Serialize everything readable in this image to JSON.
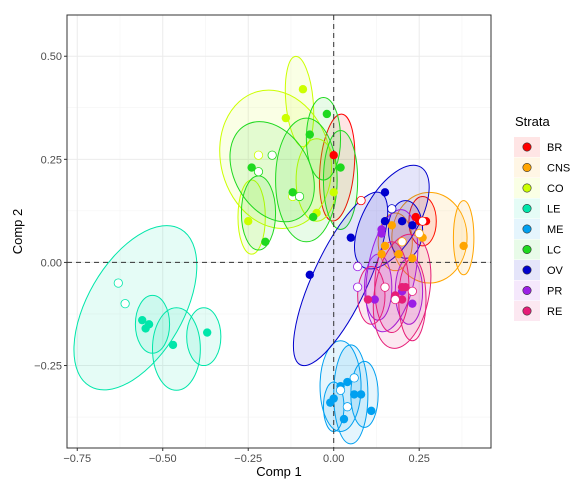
{
  "chart_data": {
    "type": "scatter",
    "xlabel": "Comp 1",
    "ylabel": "Comp 2",
    "xlim": [
      -0.78,
      0.46
    ],
    "ylim": [
      -0.45,
      0.6
    ],
    "x_ticks": [
      -0.75,
      -0.5,
      -0.25,
      0.0,
      0.25
    ],
    "x_tick_labels": [
      "−0.75",
      "−0.50",
      "−0.25",
      "0.00",
      "0.25"
    ],
    "y_ticks": [
      -0.25,
      0.0,
      0.25,
      0.5
    ],
    "y_tick_labels": [
      "−0.25",
      "0.00",
      "0.25",
      "0.50"
    ],
    "grid": true,
    "reference_lines": {
      "x": 0,
      "y": 0,
      "style": "dashed"
    },
    "legend": {
      "title": "Strata",
      "position": "right",
      "entries": [
        "BR",
        "CNS",
        "CO",
        "LE",
        "ME",
        "LC",
        "OV",
        "PR",
        "RE"
      ]
    },
    "series": [
      {
        "name": "BR",
        "color": "#FF0000",
        "points": [
          [
            0.0,
            0.26
          ],
          [
            0.25,
            0.1
          ],
          [
            0.27,
            0.1
          ],
          [
            0.24,
            0.11
          ]
        ],
        "centroids": [
          [
            0.08,
            0.15
          ],
          [
            0.26,
            0.1
          ]
        ],
        "ellipses": [
          [
            0.01,
            0.23,
            0.05,
            0.13,
            5
          ],
          [
            0.26,
            0.1,
            0.04,
            0.06,
            0
          ]
        ]
      },
      {
        "name": "CNS",
        "color": "#FFA500",
        "points": [
          [
            0.38,
            0.04
          ],
          [
            0.14,
            0.02
          ],
          [
            0.15,
            0.04
          ],
          [
            0.19,
            0.02
          ],
          [
            0.23,
            0.01
          ],
          [
            0.26,
            0.06
          ],
          [
            0.17,
            0.09
          ]
        ],
        "centroids": [
          [
            0.25,
            0.07
          ],
          [
            0.2,
            0.05
          ]
        ],
        "ellipses": [
          [
            0.28,
            0.06,
            0.11,
            0.11,
            0
          ],
          [
            0.38,
            0.06,
            0.03,
            0.09,
            0
          ],
          [
            0.18,
            0.05,
            0.05,
            0.07,
            0
          ]
        ]
      },
      {
        "name": "CO",
        "color": "#CCFF00",
        "points": [
          [
            -0.09,
            0.42
          ],
          [
            -0.14,
            0.35
          ],
          [
            -0.25,
            0.1
          ],
          [
            -0.05,
            0.12
          ],
          [
            0.0,
            0.17
          ]
        ],
        "centroids": [
          [
            -0.22,
            0.26
          ],
          [
            -0.12,
            0.16
          ]
        ],
        "ellipses": [
          [
            -0.1,
            0.39,
            0.04,
            0.11,
            -5
          ],
          [
            -0.17,
            0.25,
            0.16,
            0.17,
            -15
          ],
          [
            -0.05,
            0.2,
            0.06,
            0.1,
            0
          ],
          [
            -0.24,
            0.11,
            0.04,
            0.09,
            0
          ]
        ]
      },
      {
        "name": "LE",
        "color": "#00E6AA",
        "points": [
          [
            -0.56,
            -0.14
          ],
          [
            -0.55,
            -0.16
          ],
          [
            -0.47,
            -0.2
          ],
          [
            -0.37,
            -0.17
          ],
          [
            -0.54,
            -0.15
          ]
        ],
        "centroids": [
          [
            -0.63,
            -0.05
          ],
          [
            -0.61,
            -0.1
          ]
        ],
        "ellipses": [
          [
            -0.58,
            -0.11,
            0.14,
            0.22,
            30
          ],
          [
            -0.53,
            -0.15,
            0.05,
            0.07,
            0
          ],
          [
            -0.46,
            -0.21,
            0.07,
            0.1,
            0
          ],
          [
            -0.38,
            -0.18,
            0.05,
            0.07,
            0
          ]
        ]
      },
      {
        "name": "ME",
        "color": "#00A0F0",
        "points": [
          [
            -0.01,
            -0.34
          ],
          [
            0.0,
            -0.33
          ],
          [
            0.03,
            -0.38
          ],
          [
            0.06,
            -0.32
          ],
          [
            0.11,
            -0.36
          ],
          [
            0.02,
            -0.3
          ],
          [
            0.08,
            -0.32
          ],
          [
            0.04,
            -0.29
          ]
        ],
        "centroids": [
          [
            0.02,
            -0.31
          ],
          [
            0.04,
            -0.35
          ],
          [
            0.06,
            -0.28
          ]
        ],
        "ellipses": [
          [
            0.02,
            -0.3,
            0.06,
            0.11,
            0
          ],
          [
            0.05,
            -0.32,
            0.05,
            0.12,
            0
          ],
          [
            0.09,
            -0.32,
            0.04,
            0.08,
            0
          ],
          [
            0.0,
            -0.35,
            0.03,
            0.06,
            0
          ]
        ]
      },
      {
        "name": "LC",
        "color": "#1ED91E",
        "points": [
          [
            -0.24,
            0.23
          ],
          [
            -0.06,
            0.11
          ],
          [
            -0.2,
            0.05
          ],
          [
            -0.02,
            0.36
          ],
          [
            -0.07,
            0.31
          ],
          [
            0.02,
            0.23
          ],
          [
            -0.12,
            0.17
          ]
        ],
        "centroids": [
          [
            -0.22,
            0.22
          ],
          [
            -0.18,
            0.26
          ],
          [
            -0.1,
            0.16
          ]
        ],
        "ellipses": [
          [
            -0.18,
            0.22,
            0.11,
            0.13,
            -30
          ],
          [
            -0.08,
            0.2,
            0.09,
            0.15,
            0
          ],
          [
            -0.03,
            0.3,
            0.05,
            0.1,
            0
          ],
          [
            0.02,
            0.2,
            0.05,
            0.12,
            0
          ],
          [
            -0.22,
            0.12,
            0.05,
            0.09,
            0
          ]
        ]
      },
      {
        "name": "OV",
        "color": "#0000CD",
        "points": [
          [
            0.15,
            0.17
          ],
          [
            0.15,
            0.1
          ],
          [
            0.2,
            0.1
          ],
          [
            0.23,
            0.09
          ],
          [
            -0.07,
            -0.03
          ],
          [
            0.05,
            0.06
          ]
        ],
        "centroids": [
          [
            0.17,
            0.13
          ]
        ],
        "ellipses": [
          [
            0.17,
            0.11,
            0.08,
            0.14,
            30
          ],
          [
            0.02,
            -0.04,
            0.08,
            0.23,
            25
          ],
          [
            0.21,
            0.08,
            0.05,
            0.07,
            0
          ]
        ]
      },
      {
        "name": "PR",
        "color": "#9B1EE6",
        "points": [
          [
            0.14,
            0.07
          ],
          [
            0.14,
            0.08
          ],
          [
            0.2,
            -0.07
          ],
          [
            0.23,
            -0.1
          ],
          [
            0.12,
            -0.09
          ]
        ],
        "centroids": [
          [
            0.07,
            -0.01
          ],
          [
            0.07,
            -0.06
          ]
        ],
        "ellipses": [
          [
            0.17,
            -0.02,
            0.07,
            0.15,
            10
          ],
          [
            0.22,
            -0.07,
            0.04,
            0.08,
            0
          ],
          [
            0.13,
            -0.06,
            0.04,
            0.08,
            0
          ]
        ]
      },
      {
        "name": "RE",
        "color": "#E61E78",
        "points": [
          [
            0.1,
            -0.09
          ],
          [
            0.2,
            -0.06
          ],
          [
            0.21,
            -0.06
          ],
          [
            0.2,
            -0.09
          ],
          [
            0.18,
            -0.08
          ]
        ],
        "centroids": [
          [
            0.15,
            -0.06
          ],
          [
            0.18,
            -0.09
          ],
          [
            0.23,
            -0.07
          ]
        ],
        "ellipses": [
          [
            0.2,
            -0.07,
            0.08,
            0.14,
            10
          ],
          [
            0.17,
            -0.06,
            0.05,
            0.11,
            0
          ],
          [
            0.23,
            -0.09,
            0.04,
            0.1,
            0
          ],
          [
            0.11,
            -0.08,
            0.04,
            0.07,
            0
          ]
        ]
      }
    ]
  }
}
